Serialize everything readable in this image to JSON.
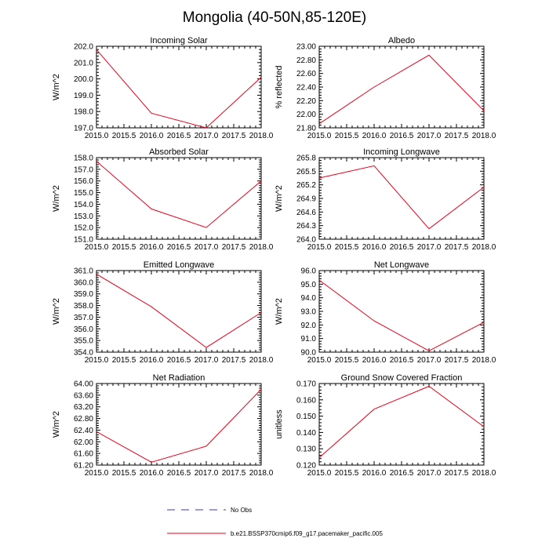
{
  "figure": {
    "title": "Mongolia (40-50N,85-120E)"
  },
  "legend": [
    {
      "label": "No Obs",
      "color": "#3a3ab8",
      "style": "dashed"
    },
    {
      "label": "b.e21.BSSP370cmip6.f09_g17.pacemaker_pacific.005",
      "color": "#e8001c",
      "style": "solid"
    }
  ],
  "chart_data": [
    {
      "type": "line",
      "title": "Incoming Solar",
      "ylabel": "W/m^2",
      "xlabel": "",
      "xlim": [
        2015.0,
        2018.0
      ],
      "ylim": [
        197.0,
        202.0
      ],
      "xticks": [
        "2015.0",
        "2015.5",
        "2016.0",
        "2016.5",
        "2017.0",
        "2017.5",
        "2018.0"
      ],
      "yticks": [
        "197.0",
        "198.0",
        "199.0",
        "200.0",
        "201.0",
        "202.0"
      ],
      "x": [
        2015,
        2016,
        2017,
        2018
      ],
      "series": [
        {
          "name": "b.e21.BSSP370cmip6.f09_g17.pacemaker_pacific.005",
          "color": "#e8001c",
          "values": [
            201.8,
            197.9,
            197.0,
            200.1
          ]
        }
      ]
    },
    {
      "type": "line",
      "title": "Albedo",
      "ylabel": "% reflected",
      "xlabel": "",
      "xlim": [
        2015.0,
        2018.0
      ],
      "ylim": [
        21.8,
        23.0
      ],
      "xticks": [
        "2015.0",
        "2015.5",
        "2016.0",
        "2016.5",
        "2017.0",
        "2017.5",
        "2018.0"
      ],
      "yticks": [
        "21.80",
        "22.00",
        "22.20",
        "22.40",
        "22.60",
        "22.80",
        "23.00"
      ],
      "x": [
        2015,
        2016,
        2017,
        2018
      ],
      "series": [
        {
          "name": "b.e21.BSSP370cmip6.f09_g17.pacemaker_pacific.005",
          "color": "#e8001c",
          "values": [
            21.86,
            22.4,
            22.87,
            22.05
          ]
        }
      ]
    },
    {
      "type": "line",
      "title": "Absorbed Solar",
      "ylabel": "W/m^2",
      "xlabel": "",
      "xlim": [
        2015.0,
        2018.0
      ],
      "ylim": [
        151.0,
        158.0
      ],
      "xticks": [
        "2015.0",
        "2015.5",
        "2016.0",
        "2016.5",
        "2017.0",
        "2017.5",
        "2018.0"
      ],
      "yticks": [
        "151.0",
        "152.0",
        "153.0",
        "154.0",
        "155.0",
        "156.0",
        "157.0",
        "158.0"
      ],
      "x": [
        2015,
        2016,
        2017,
        2018
      ],
      "series": [
        {
          "name": "b.e21.BSSP370cmip6.f09_g17.pacemaker_pacific.005",
          "color": "#e8001c",
          "values": [
            157.7,
            153.6,
            152.0,
            156.0
          ]
        }
      ]
    },
    {
      "type": "line",
      "title": "Incoming Longwave",
      "ylabel": "W/m^2",
      "xlabel": "",
      "xlim": [
        2015.0,
        2018.0
      ],
      "ylim": [
        264.0,
        265.8
      ],
      "xticks": [
        "2015.0",
        "2015.5",
        "2016.0",
        "2016.5",
        "2017.0",
        "2017.5",
        "2018.0"
      ],
      "yticks": [
        "264.0",
        "264.3",
        "264.6",
        "264.9",
        "265.2",
        "265.5",
        "265.8"
      ],
      "x": [
        2015,
        2016,
        2017,
        2018
      ],
      "series": [
        {
          "name": "b.e21.BSSP370cmip6.f09_g17.pacemaker_pacific.005",
          "color": "#e8001c",
          "values": [
            265.35,
            265.62,
            264.23,
            265.15
          ]
        }
      ]
    },
    {
      "type": "line",
      "title": "Emitted Longwave",
      "ylabel": "W/m^2",
      "xlabel": "",
      "xlim": [
        2015.0,
        2018.0
      ],
      "ylim": [
        354.0,
        361.0
      ],
      "xticks": [
        "2015.0",
        "2015.5",
        "2016.0",
        "2016.5",
        "2017.0",
        "2017.5",
        "2018.0"
      ],
      "yticks": [
        "354.0",
        "355.0",
        "356.0",
        "357.0",
        "358.0",
        "359.0",
        "360.0",
        "361.0"
      ],
      "x": [
        2015,
        2016,
        2017,
        2018
      ],
      "series": [
        {
          "name": "b.e21.BSSP370cmip6.f09_g17.pacemaker_pacific.005",
          "color": "#e8001c",
          "values": [
            360.7,
            357.9,
            354.4,
            357.4
          ]
        }
      ]
    },
    {
      "type": "line",
      "title": "Net Longwave",
      "ylabel": "W/m^2",
      "xlabel": "",
      "xlim": [
        2015.0,
        2018.0
      ],
      "ylim": [
        90.0,
        96.0
      ],
      "xticks": [
        "2015.0",
        "2015.5",
        "2016.0",
        "2016.5",
        "2017.0",
        "2017.5",
        "2018.0"
      ],
      "yticks": [
        "90.0",
        "91.0",
        "92.0",
        "93.0",
        "94.0",
        "95.0",
        "96.0"
      ],
      "x": [
        2015,
        2016,
        2017,
        2018
      ],
      "series": [
        {
          "name": "b.e21.BSSP370cmip6.f09_g17.pacemaker_pacific.005",
          "color": "#e8001c",
          "values": [
            95.3,
            92.3,
            90.1,
            92.2
          ]
        }
      ]
    },
    {
      "type": "line",
      "title": "Net Radiation",
      "ylabel": "W/m^2",
      "xlabel": "",
      "xlim": [
        2015.0,
        2018.0
      ],
      "ylim": [
        61.2,
        64.0
      ],
      "xticks": [
        "2015.0",
        "2015.5",
        "2016.0",
        "2016.5",
        "2017.0",
        "2017.5",
        "2018.0"
      ],
      "yticks": [
        "61.20",
        "61.60",
        "62.00",
        "62.40",
        "62.80",
        "63.20",
        "63.60",
        "64.00"
      ],
      "x": [
        2015,
        2016,
        2017,
        2018
      ],
      "series": [
        {
          "name": "b.e21.BSSP370cmip6.f09_g17.pacemaker_pacific.005",
          "color": "#e8001c",
          "values": [
            62.35,
            61.3,
            61.85,
            63.8
          ]
        }
      ]
    },
    {
      "type": "line",
      "title": "Ground Snow Covered Fraction",
      "ylabel": "unitless",
      "xlabel": "",
      "xlim": [
        2015.0,
        2018.0
      ],
      "ylim": [
        0.12,
        0.17
      ],
      "xticks": [
        "2015.0",
        "2015.5",
        "2016.0",
        "2016.5",
        "2017.0",
        "2017.5",
        "2018.0"
      ],
      "yticks": [
        "0.120",
        "0.130",
        "0.140",
        "0.150",
        "0.160",
        "0.170"
      ],
      "x": [
        2015,
        2016,
        2017,
        2018
      ],
      "series": [
        {
          "name": "b.e21.BSSP370cmip6.f09_g17.pacemaker_pacific.005",
          "color": "#e8001c",
          "values": [
            0.1245,
            0.1543,
            0.1683,
            0.1435
          ]
        }
      ]
    }
  ]
}
